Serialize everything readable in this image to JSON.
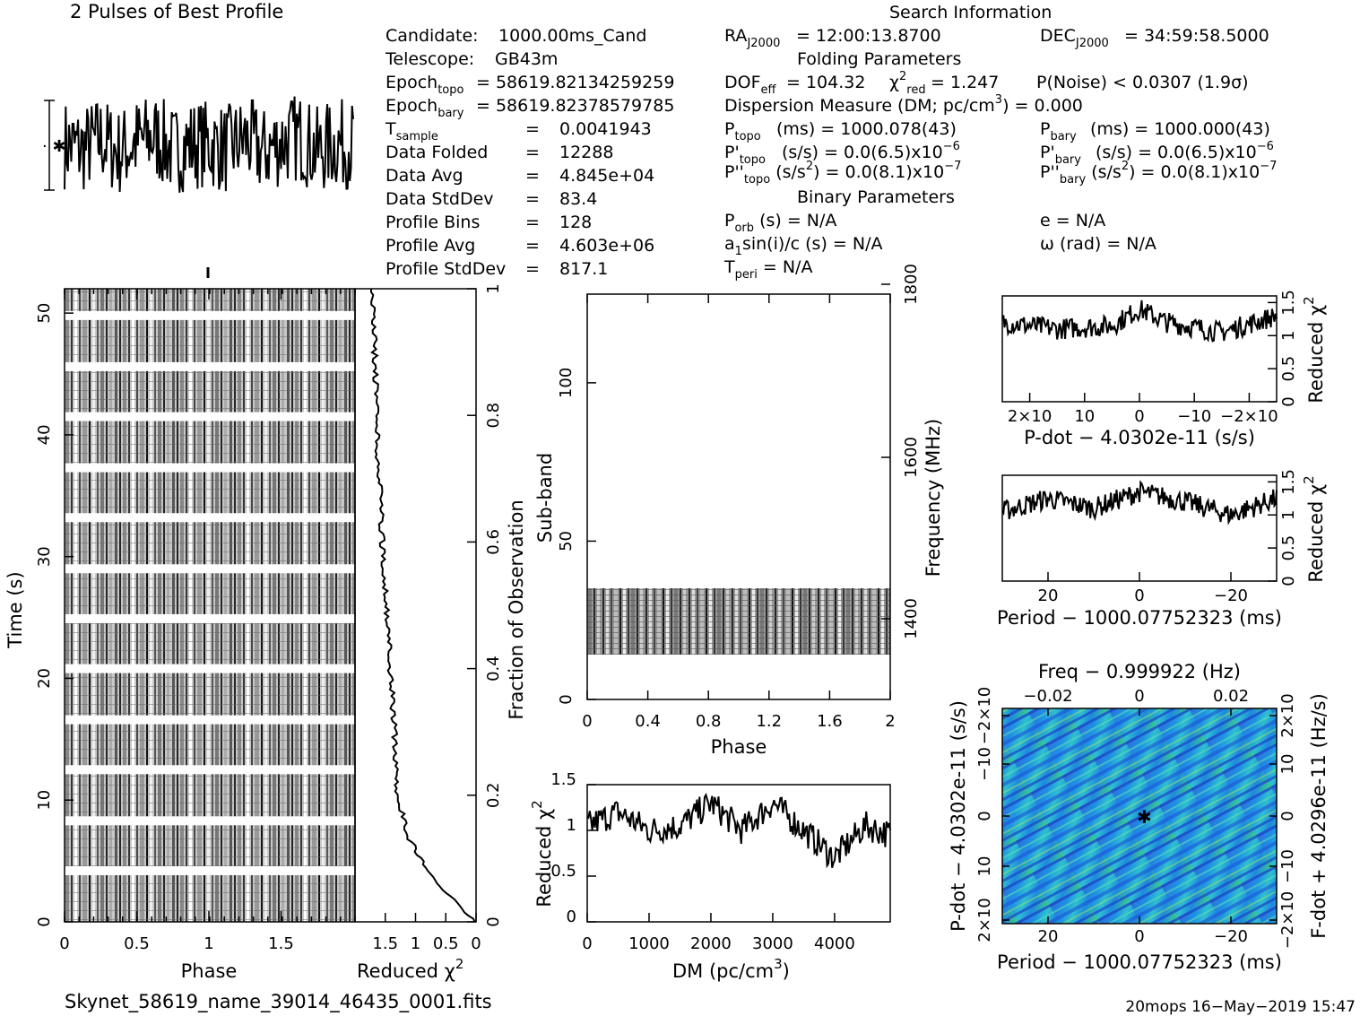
{
  "profile": {
    "title": "2 Pulses of Best Profile"
  },
  "search_info": {
    "header": "Search Information",
    "candidate_label": "Candidate:",
    "candidate": "1000.00ms_Cand",
    "telescope_label": "Telescope:",
    "telescope": "GB43m",
    "epoch_topo_label": "Epoch",
    "epoch_topo_sub": "topo",
    "epoch_topo": "= 58619.82134259259",
    "epoch_bary_label": "Epoch",
    "epoch_bary_sub": "bary",
    "epoch_bary": "= 58619.82378579785",
    "rows": [
      {
        "label": "T",
        "sub": "sample",
        "eq": "=",
        "value": "0.0041943"
      },
      {
        "label": "Data Folded",
        "sub": "",
        "eq": "=",
        "value": "12288"
      },
      {
        "label": "Data Avg",
        "sub": "",
        "eq": "=",
        "value": "4.845e+04"
      },
      {
        "label": "Data StdDev",
        "sub": "",
        "eq": "=",
        "value": "83.4"
      },
      {
        "label": "Profile Bins",
        "sub": "",
        "eq": "=",
        "value": "128"
      },
      {
        "label": "Profile Avg",
        "sub": "",
        "eq": "=",
        "value": "4.603e+06"
      },
      {
        "label": "Profile StdDev",
        "sub": "",
        "eq": "=",
        "value": "817.1"
      }
    ],
    "ra": "= 12:00:13.8700",
    "dec": "= 34:59:58.5000",
    "folding_header": "Folding Parameters",
    "dof": "DOF",
    "dof_value": "= 104.32",
    "chi2_value": "= 1.247",
    "pnoise": "P(Noise) < 0.0307   (1.9σ)",
    "dm_line": "Dispersion Measure (DM; pc/cm",
    "dm_value": ") = 0.000",
    "p_topo": "(ms) =   1000.078(43)",
    "p_bary": "(ms) =   1000.000(43)",
    "pd_topo": "(s/s) = 0.0(6.5)x10",
    "pd_bary": "(s/s) = 0.0(6.5)x10",
    "pd_exp": "−6",
    "pdd_topo": ") = 0.0(8.1)x10",
    "pdd_bary": ") = 0.0(8.1)x10",
    "pdd_exp": "−7",
    "binary_header": "Binary Parameters",
    "porb": "(s) = N/A",
    "ecc": "e = N/A",
    "a1sini": "sin(i)/c (s) = N/A",
    "omega": "ω (rad) = N/A",
    "tperi": "= N/A"
  },
  "waterfall": {
    "ylabel": "Time (s)",
    "xlabel": "Phase",
    "yticks": [
      "0",
      "10",
      "20",
      "30",
      "40",
      "50"
    ],
    "xticks": [
      "0",
      "0.5",
      "1",
      "1.5"
    ]
  },
  "redchi_time": {
    "xlabel": "Reduced χ",
    "ylabel": "Fraction of Observation",
    "xticks": [
      "1.5",
      "1",
      "0.5",
      "0"
    ],
    "yticks": [
      "0",
      "0.2",
      "0.4",
      "0.6",
      "0.8",
      "1"
    ]
  },
  "subband": {
    "ylabel": "Sub-band",
    "xlabel": "Phase",
    "y2label": "Frequency (MHz)",
    "xticks": [
      "0",
      "0.4",
      "0.8",
      "1.2",
      "1.6",
      "2"
    ],
    "yticks": [
      "0",
      "50",
      "100"
    ],
    "y2ticks": [
      "1400",
      "1600",
      "1800"
    ]
  },
  "dm_panel": {
    "ylabel": "Reduced χ",
    "xlabel": "DM (pc/cm",
    "xticks": [
      "0",
      "1000",
      "2000",
      "3000",
      "4000"
    ],
    "yticks": [
      "0",
      "0.5",
      "1",
      "1.5"
    ]
  },
  "pdot_panel": {
    "xlabel": "P-dot − 4.0302e-11 (s/s)",
    "ylabel": "Reduced χ",
    "xticks": [
      "2×10",
      "10",
      "0",
      "−10",
      "−2×10"
    ],
    "yticks": [
      "0",
      "0.5",
      "1",
      "1.5"
    ]
  },
  "period_panel": {
    "xlabel": "Period − 1000.07752323 (ms)",
    "ylabel": "Reduced χ",
    "xticks": [
      "20",
      "0",
      "−20"
    ],
    "yticks": [
      "0",
      "0.5",
      "1",
      "1.5"
    ]
  },
  "ppdot": {
    "top_label": "Freq − 0.999922 (Hz)",
    "top_ticks": [
      "−0.02",
      "0",
      "0.02"
    ],
    "xlabel": "Period − 1000.07752323 (ms)",
    "xticks": [
      "20",
      "0",
      "−20"
    ],
    "ylabel": "P-dot − 4.0302e-11 (s/s)",
    "yticks": [
      "2×10",
      "10",
      "0",
      "−10",
      "−2×10"
    ],
    "y2label": "F-dot + 4.0296e-11 (Hz/s)",
    "y2ticks": [
      "−2×10",
      "−10",
      "0",
      "10",
      "2×10"
    ]
  },
  "footer": {
    "filename": "Skynet_58619_name_39014_46435_0001.fits",
    "stamp": "20mops 16−May−2019 15:47"
  },
  "chart_data": [
    {
      "type": "line",
      "name": "profile",
      "x": [
        0,
        0.125,
        0.25,
        0.375,
        0.5,
        0.625,
        0.75,
        0.875,
        1.0,
        1.125,
        1.25,
        1.375,
        1.5,
        1.625,
        1.75,
        1.875,
        2.0
      ],
      "y": [
        0.2,
        -0.8,
        1.1,
        -1.3,
        0.6,
        1.6,
        -1.1,
        0.3,
        0.2,
        -0.8,
        1.1,
        -1.3,
        0.6,
        1.6,
        -1.1,
        0.3,
        0.2
      ],
      "xlim": [
        0,
        2
      ]
    },
    {
      "type": "heatmap",
      "name": "time-phase",
      "xlabel": "Phase",
      "ylabel": "Time (s)",
      "xlim": [
        0,
        2
      ],
      "ylim": [
        0,
        52
      ],
      "gaps_s": [
        4.2,
        8.3,
        12.5,
        16.6,
        20.8,
        24.9,
        29.0,
        33.2,
        37.3,
        41.5,
        45.6,
        49.8
      ]
    },
    {
      "type": "line",
      "name": "reduced-chi2-vs-fraction",
      "x": [
        0.05,
        0.3,
        0.55,
        0.9,
        1.1,
        1.3,
        1.35,
        1.45,
        1.55,
        1.65,
        1.7
      ],
      "y": [
        0.005,
        0.03,
        0.05,
        0.1,
        0.13,
        0.2,
        0.3,
        0.45,
        0.6,
        0.8,
        0.99
      ],
      "xlim": [
        2,
        0
      ],
      "ylim": [
        0,
        1
      ]
    },
    {
      "type": "heatmap",
      "name": "subband-phase",
      "xlabel": "Phase",
      "ylabel": "Sub-band",
      "xlim": [
        0,
        2
      ],
      "ylim": [
        0,
        128
      ],
      "filled_subbands": [
        14,
        35
      ]
    },
    {
      "type": "line",
      "name": "reduced-chi2-vs-DM",
      "x": [
        0,
        500,
        1000,
        1500,
        2000,
        2500,
        3000,
        3500,
        4000,
        4500,
        4900
      ],
      "y": [
        1.05,
        1.2,
        1.0,
        1.05,
        1.3,
        1.0,
        1.3,
        1.0,
        0.7,
        1.05,
        0.95
      ],
      "xlim": [
        0,
        4900
      ],
      "ylim": [
        0,
        1.5
      ]
    },
    {
      "type": "line",
      "name": "reduced-chi2-vs-pdot",
      "x": [
        0.0025,
        0.0015,
        0.0005,
        0,
        -0.0005,
        -0.0015,
        -0.0025
      ],
      "y": [
        1.2,
        1.1,
        1.15,
        1.4,
        1.2,
        1.05,
        1.3
      ],
      "xlim": [
        0.0025,
        -0.0025
      ],
      "ylim": [
        0,
        1.6
      ]
    },
    {
      "type": "line",
      "name": "reduced-chi2-vs-period",
      "x": [
        30,
        20,
        10,
        0,
        -10,
        -20,
        -30
      ],
      "y": [
        1.05,
        1.25,
        1.1,
        1.35,
        1.2,
        1.0,
        1.25
      ],
      "xlim": [
        30,
        -30
      ],
      "ylim": [
        0,
        1.6
      ]
    },
    {
      "type": "heatmap",
      "name": "period-pdot",
      "xlim": [
        30,
        -30
      ],
      "best": [
        0,
        0
      ]
    }
  ]
}
